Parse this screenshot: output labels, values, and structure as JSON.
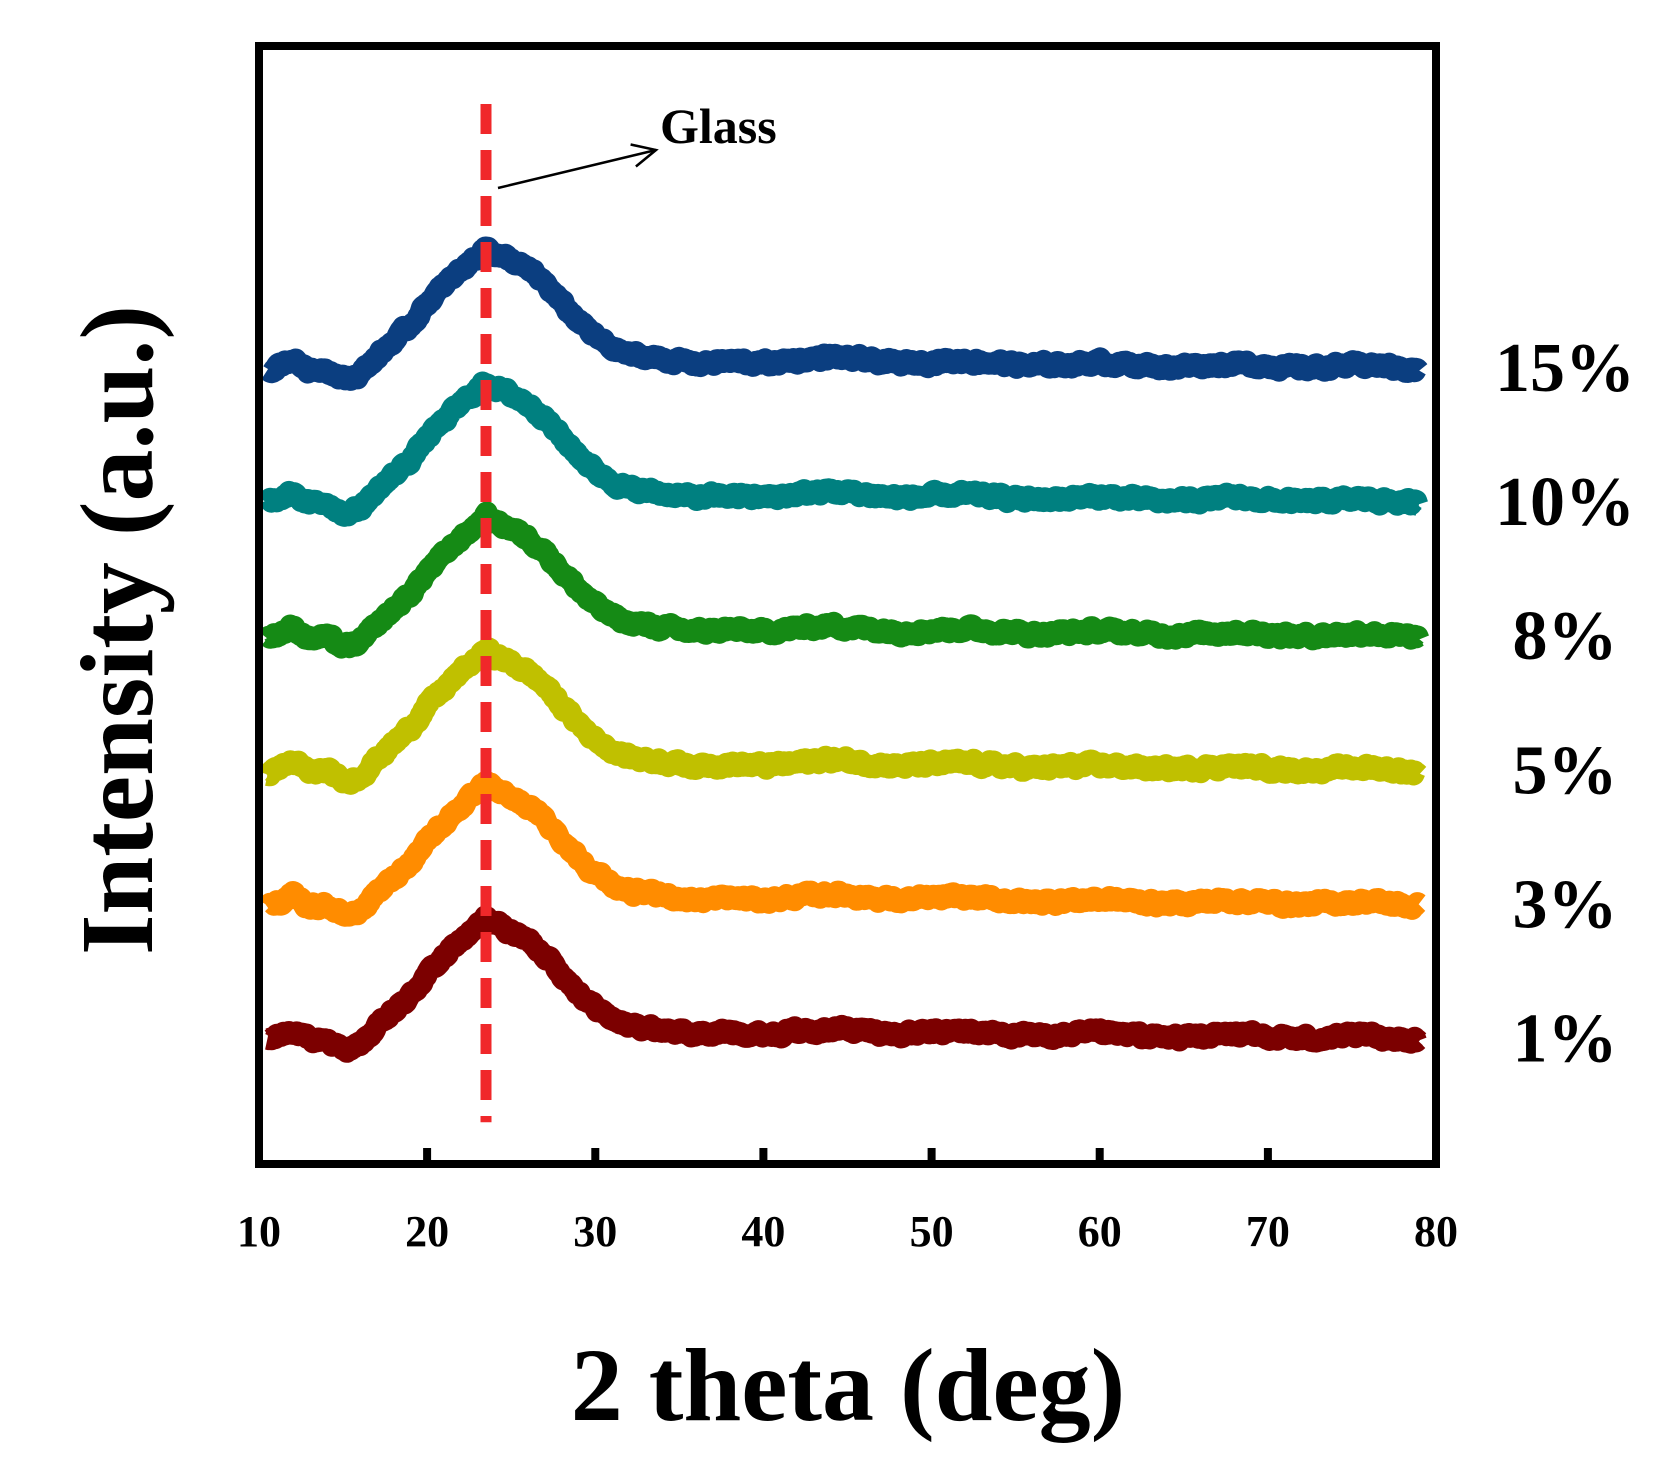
{
  "chart_data": {
    "type": "line",
    "title": "",
    "xlabel": "2 theta (deg)",
    "ylabel": "Intensity (a.u.)",
    "xlim": [
      10,
      80
    ],
    "ylim": [
      0,
      100
    ],
    "grid": false,
    "y_ticks_labeled": false,
    "x_ticks": [
      10,
      20,
      30,
      40,
      50,
      60,
      70,
      80
    ],
    "x_tick_labels": [
      "10",
      "20",
      "30",
      "40",
      "50",
      "60",
      "70",
      "80"
    ],
    "annotations": [
      {
        "text": "Glass",
        "x": 23.5,
        "style": "dashed vertical line",
        "color": "#f0282a"
      }
    ],
    "series_shape": {
      "description": "Broad amorphous glass hump centered near 23.5 degrees on a flat noisy baseline, vertically offset per concentration",
      "points": [
        [
          10.5,
          1.0
        ],
        [
          12,
          2.0
        ],
        [
          13,
          1.0
        ],
        [
          14,
          1.2
        ],
        [
          15,
          0.2
        ],
        [
          16,
          0.6
        ],
        [
          17,
          2.2
        ],
        [
          18,
          3.6
        ],
        [
          19,
          5.0
        ],
        [
          20,
          7.0
        ],
        [
          21,
          8.5
        ],
        [
          22,
          10.0
        ],
        [
          23,
          11.2
        ],
        [
          23.5,
          12.0
        ],
        [
          24,
          11.5
        ],
        [
          25,
          10.8
        ],
        [
          26,
          10.0
        ],
        [
          27,
          8.8
        ],
        [
          28,
          7.0
        ],
        [
          29,
          5.4
        ],
        [
          30,
          4.0
        ],
        [
          31,
          3.0
        ],
        [
          32,
          2.4
        ],
        [
          34,
          2.0
        ],
        [
          36,
          1.6
        ],
        [
          38,
          1.8
        ],
        [
          40,
          1.6
        ],
        [
          44,
          2.2
        ],
        [
          48,
          1.6
        ],
        [
          52,
          1.9
        ],
        [
          56,
          1.4
        ],
        [
          60,
          1.7
        ],
        [
          64,
          1.3
        ],
        [
          68,
          1.6
        ],
        [
          72,
          1.2
        ],
        [
          76,
          1.5
        ],
        [
          79,
          1.0
        ]
      ]
    },
    "series": [
      {
        "name": "1%",
        "offset": 10,
        "color": "#7c0000"
      },
      {
        "name": "3%",
        "offset": 22,
        "color": "#ff8c00"
      },
      {
        "name": "5%",
        "offset": 34,
        "color": "#c0c000"
      },
      {
        "name": "8%",
        "offset": 46,
        "color": "#158a15"
      },
      {
        "name": "10%",
        "offset": 58,
        "color": "#008080"
      },
      {
        "name": "15%",
        "offset": 70,
        "color": "#0b3e80"
      }
    ]
  }
}
